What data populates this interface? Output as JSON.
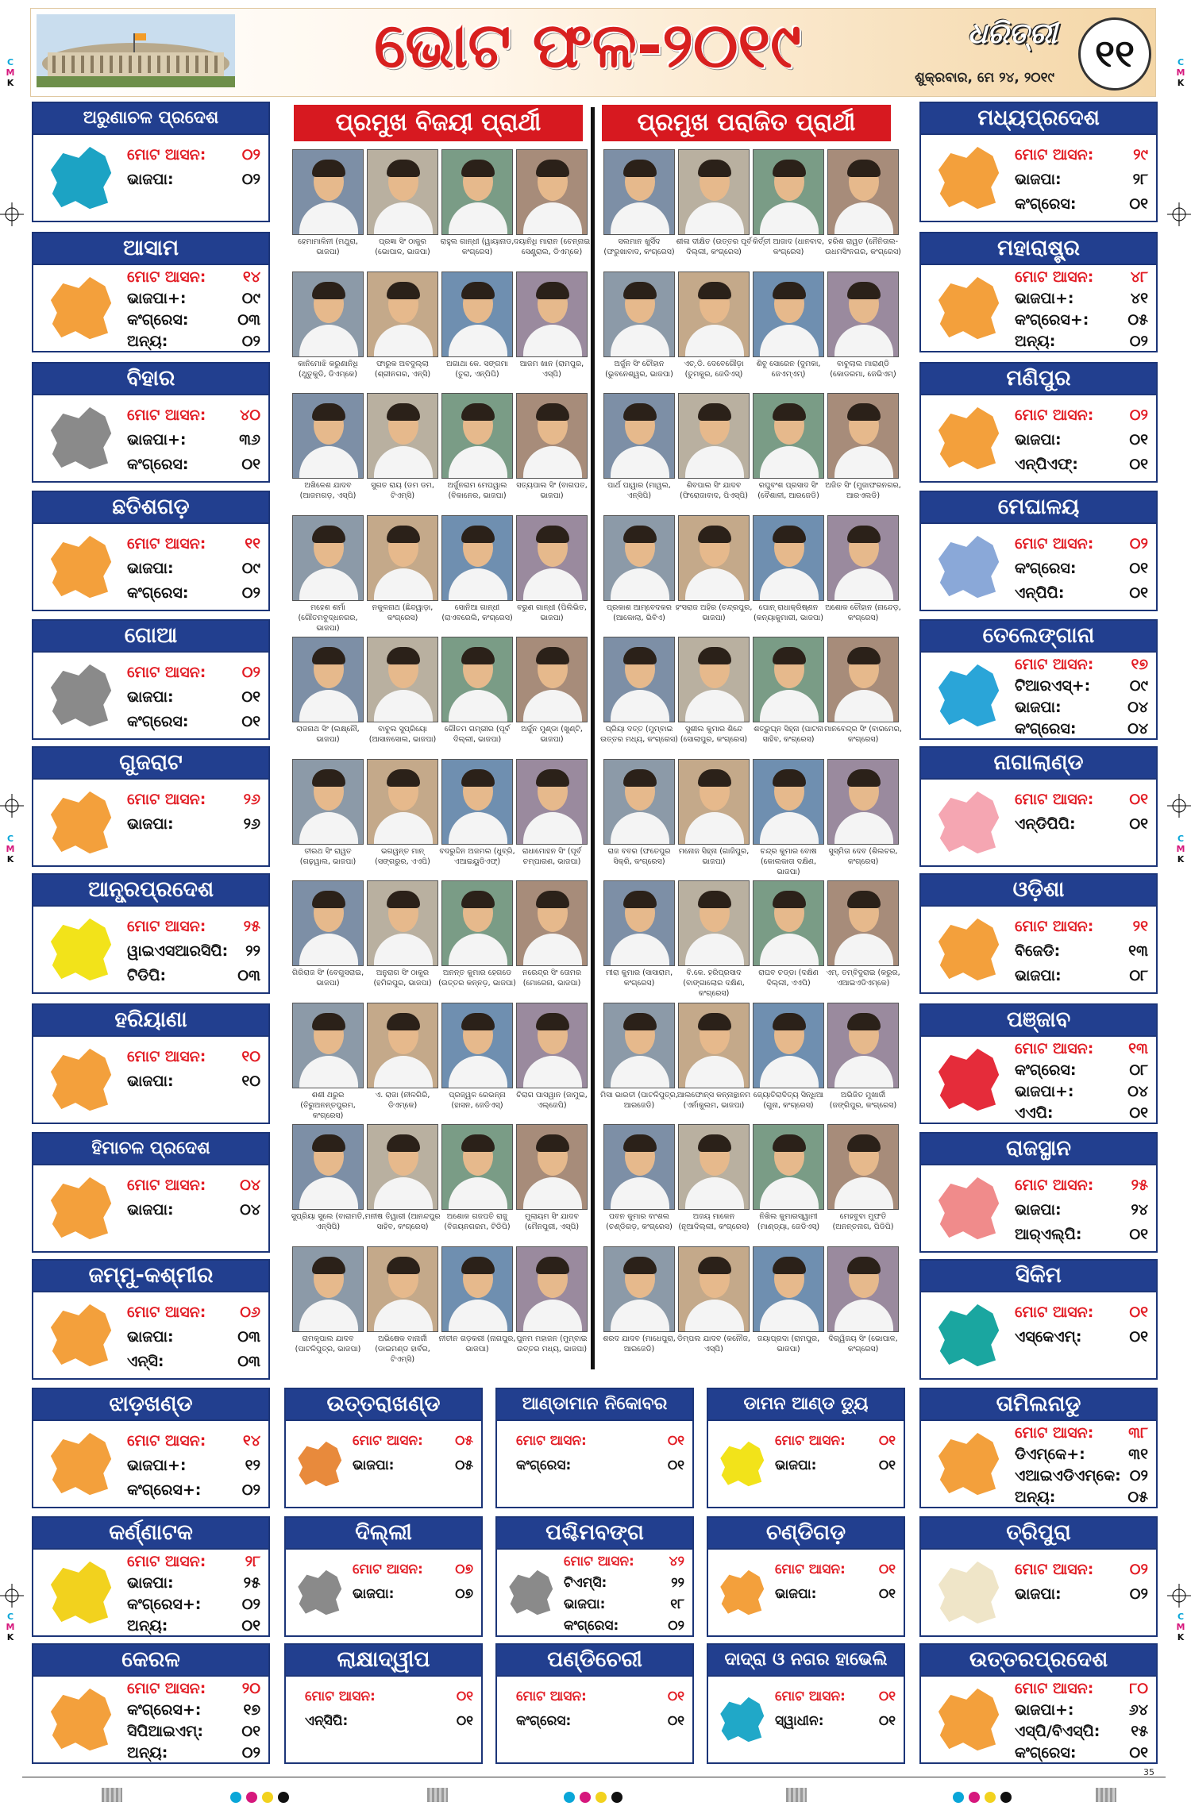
{
  "header": {
    "title": "ଭୋଟ ଫଳ-୨୦୧୯",
    "brand": "ଧରିତ୍ରୀ",
    "date": "ଶୁକ୍ରବାର, ମେ ୨୪, ୨୦୧୯",
    "page_number": "୧୧"
  },
  "sections": {
    "winners": "ପ୍ରମୁଖ ବିଜୟୀ ପ୍ରାର୍ଥୀ",
    "losers": "ପ୍ରମୁଖ ପରାଜିତ ପ୍ରାର୍ଥୀ"
  },
  "colors": {
    "header_blue": "#223f8f",
    "title_red": "#d8201f",
    "map_orange": "#f3a03c"
  },
  "register_marks": {
    "c": "C",
    "m": "M",
    "k": "K"
  },
  "page_footer_number": "35",
  "states": {
    "arunachal": {
      "name": "ଅରୁଣାଚଳ ପ୍ରଦେଶ",
      "rows": [
        {
          "k": "ମୋଟ ଆସନ:",
          "v": "୦୨"
        },
        {
          "k": "ଭାଜପା:",
          "v": "୦୨"
        }
      ]
    },
    "assam": {
      "name": "ଆସାମ",
      "rows": [
        {
          "k": "ମୋଟ ଆସନ:",
          "v": "୧୪"
        },
        {
          "k": "ଭାଜପା+:",
          "v": "୦୯"
        },
        {
          "k": "କଂଗ୍ରେସ:",
          "v": "୦୩"
        },
        {
          "k": "ଅନ୍ୟ:",
          "v": "୦୨"
        }
      ]
    },
    "bihar": {
      "name": "ବିହାର",
      "rows": [
        {
          "k": "ମୋଟ ଆସନ:",
          "v": "୪୦"
        },
        {
          "k": "ଭାଜପା+:",
          "v": "୩୬"
        },
        {
          "k": "କଂଗ୍ରେସ:",
          "v": "୦୧"
        }
      ]
    },
    "chhattisgarh": {
      "name": "ଛତିଶଗଡ଼",
      "rows": [
        {
          "k": "ମୋଟ ଆସନ:",
          "v": "୧୧"
        },
        {
          "k": "ଭାଜପା:",
          "v": "୦୯"
        },
        {
          "k": "କଂଗ୍ରେସ:",
          "v": "୦୨"
        }
      ]
    },
    "goa": {
      "name": "ଗୋଆ",
      "rows": [
        {
          "k": "ମୋଟ ଆସନ:",
          "v": "୦୨"
        },
        {
          "k": "ଭାଜପା:",
          "v": "୦୧"
        },
        {
          "k": "କଂଗ୍ରେସ:",
          "v": "୦୧"
        }
      ]
    },
    "gujarat": {
      "name": "ଗୁଜରାଟ",
      "rows": [
        {
          "k": "ମୋଟ ଆସନ:",
          "v": "୨୬"
        },
        {
          "k": "ଭାଜପା:",
          "v": "୨୬"
        }
      ]
    },
    "andhra": {
      "name": "ଆନ୍ଧ୍ରପ୍ରଦେଶ",
      "rows": [
        {
          "k": "ମୋଟ ଆସନ:",
          "v": "୨୫"
        },
        {
          "k": "ୱାଇଏସଆରସିପି:",
          "v": "୨୨"
        },
        {
          "k": "ଟିଡିପି:",
          "v": "୦୩"
        }
      ]
    },
    "haryana": {
      "name": "ହରିୟାଣା",
      "rows": [
        {
          "k": "ମୋଟ ଆସନ:",
          "v": "୧୦"
        },
        {
          "k": "ଭାଜପା:",
          "v": "୧୦"
        }
      ]
    },
    "himachal": {
      "name": "ହିମାଚଳ ପ୍ରଦେଶ",
      "rows": [
        {
          "k": "ମୋଟ ଆସନ:",
          "v": "୦୪"
        },
        {
          "k": "ଭାଜପା:",
          "v": "୦୪"
        }
      ]
    },
    "jk": {
      "name": "ଜମ୍ମୁ-କଶ୍ମୀର",
      "rows": [
        {
          "k": "ମୋଟ ଆସନ:",
          "v": "୦୬"
        },
        {
          "k": "ଭାଜପା:",
          "v": "୦୩"
        },
        {
          "k": "ଏନ୍‌ସି:",
          "v": "୦୩"
        }
      ]
    },
    "mp": {
      "name": "ମଧ୍ୟପ୍ରଦେଶ",
      "rows": [
        {
          "k": "ମୋଟ ଆସନ:",
          "v": "୨୯"
        },
        {
          "k": "ଭାଜପା:",
          "v": "୨୮"
        },
        {
          "k": "କଂଗ୍ରେସ:",
          "v": "୦୧"
        }
      ]
    },
    "maharashtra": {
      "name": "ମହାରାଷ୍ଟ୍ର",
      "rows": [
        {
          "k": "ମୋଟ ଆସନ:",
          "v": "୪୮"
        },
        {
          "k": "ଭାଜପା+:",
          "v": "୪୧"
        },
        {
          "k": "କଂଗ୍ରେସ+:",
          "v": "୦୫"
        },
        {
          "k": "ଅନ୍ୟ:",
          "v": "୦୨"
        }
      ]
    },
    "manipur": {
      "name": "ମଣିପୁର",
      "rows": [
        {
          "k": "ମୋଟ ଆସନ:",
          "v": "୦୨"
        },
        {
          "k": "ଭାଜପା:",
          "v": "୦୧"
        },
        {
          "k": "ଏନ୍‌ପିଏଫ୍:",
          "v": "୦୧"
        }
      ]
    },
    "meghalaya": {
      "name": "ମେଘାଳୟ",
      "rows": [
        {
          "k": "ମୋଟ ଆସନ:",
          "v": "୦୨"
        },
        {
          "k": "କଂଗ୍ରେସ:",
          "v": "୦୧"
        },
        {
          "k": "ଏନ୍‌ପିପି:",
          "v": "୦୧"
        }
      ]
    },
    "telangana": {
      "name": "ତେଲେଙ୍ଗାନା",
      "rows": [
        {
          "k": "ମୋଟ ଆସନ:",
          "v": "୧୭"
        },
        {
          "k": "ଟିଆରଏସ୍+:",
          "v": "୦୯"
        },
        {
          "k": "ଭାଜପା:",
          "v": "୦୪"
        },
        {
          "k": "କଂଗ୍ରେସ:",
          "v": "୦୪"
        }
      ]
    },
    "nagaland": {
      "name": "ନାଗାଲାଣ୍ଡ",
      "rows": [
        {
          "k": "ମୋଟ ଆସନ:",
          "v": "୦୧"
        },
        {
          "k": "ଏନ୍‌ଡିପିପି:",
          "v": "୦୧"
        }
      ]
    },
    "odisha": {
      "name": "ଓଡ଼ିଶା",
      "rows": [
        {
          "k": "ମୋଟ ଆସନ:",
          "v": "୨୧"
        },
        {
          "k": "ବିଜେଡି:",
          "v": "୧୩"
        },
        {
          "k": "ଭାଜପା:",
          "v": "୦୮"
        }
      ]
    },
    "punjab": {
      "name": "ପଞ୍ଜାବ",
      "rows": [
        {
          "k": "ମୋଟ ଆସନ:",
          "v": "୧୩"
        },
        {
          "k": "କଂଗ୍ରେସ:",
          "v": "୦୮"
        },
        {
          "k": "ଭାଜପା+:",
          "v": "୦୪"
        },
        {
          "k": "ଏଏପି:",
          "v": "୦୧"
        }
      ]
    },
    "rajasthan": {
      "name": "ରାଜସ୍ଥାନ",
      "rows": [
        {
          "k": "ମୋଟ ଆସନ:",
          "v": "୨୫"
        },
        {
          "k": "ଭାଜପା:",
          "v": "୨୪"
        },
        {
          "k": "ଆର୍‌ଏଲ୍‌ପି:",
          "v": "୦୧"
        }
      ]
    },
    "sikkim": {
      "name": "ସିକିମ",
      "rows": [
        {
          "k": "ମୋଟ ଆସନ:",
          "v": "୦୧"
        },
        {
          "k": "ଏସ୍‌କେଏମ୍:",
          "v": "୦୧"
        }
      ]
    },
    "jharkhand": {
      "name": "ଝାଡ଼ଖଣ୍ଡ",
      "rows": [
        {
          "k": "ମୋଟ ଆସନ:",
          "v": "୧୪"
        },
        {
          "k": "ଭାଜପା+:",
          "v": "୧୨"
        },
        {
          "k": "କଂଗ୍ରେସ+:",
          "v": "୦୨"
        }
      ]
    },
    "uttarakhand": {
      "name": "ଉତ୍ତରାଖଣ୍ଡ",
      "rows": [
        {
          "k": "ମୋଟ ଆସନ:",
          "v": "୦୫"
        },
        {
          "k": "ଭାଜପା:",
          "v": "୦୫"
        }
      ]
    },
    "andaman": {
      "name": "ଆଣ୍ଡାମାନ ନିକୋବର",
      "rows": [
        {
          "k": "ମୋଟ ଆସନ:",
          "v": "୦୧"
        },
        {
          "k": "କଂଗ୍ରେସ:",
          "v": "୦୧"
        }
      ]
    },
    "daman": {
      "name": "ଡାମନ ଆଣ୍ଡ ଡ୍ୟୁ",
      "rows": [
        {
          "k": "ମୋଟ ଆସନ:",
          "v": "୦୧"
        },
        {
          "k": "ଭାଜପା:",
          "v": "୦୧"
        }
      ]
    },
    "tamilnadu": {
      "name": "ତାମିଲନାଡୁ",
      "rows": [
        {
          "k": "ମୋଟ ଆସନ:",
          "v": "୩୮"
        },
        {
          "k": "ଡିଏମ୍‌କେ+:",
          "v": "୩୧"
        },
        {
          "k": "ଏଆଇଏଡିଏମ୍‌କେ:",
          "v": "୦୨"
        },
        {
          "k": "ଅନ୍ୟ:",
          "v": "୦୫"
        }
      ]
    },
    "karnataka": {
      "name": "କର୍ଣ୍ଣାଟକ",
      "rows": [
        {
          "k": "ମୋଟ ଆସନ:",
          "v": "୨୮"
        },
        {
          "k": "ଭାଜପା:",
          "v": "୨୫"
        },
        {
          "k": "କଂଗ୍ରେସ+:",
          "v": "୦୨"
        },
        {
          "k": "ଅନ୍ୟ:",
          "v": "୦୧"
        }
      ]
    },
    "delhi": {
      "name": "ଦିଲ୍ଲୀ",
      "rows": [
        {
          "k": "ମୋଟ ଆସନ:",
          "v": "୦୭"
        },
        {
          "k": "ଭାଜପା:",
          "v": "୦୭"
        }
      ]
    },
    "wb": {
      "name": "ପଶ୍ଚିମବଙ୍ଗ",
      "rows": [
        {
          "k": "ମୋଟ ଆସନ:",
          "v": "୪୨"
        },
        {
          "k": "ଟିଏମ୍‌ସି:",
          "v": "୨୨"
        },
        {
          "k": "ଭାଜପା:",
          "v": "୧୮"
        },
        {
          "k": "କଂଗ୍ରେସ:",
          "v": "୦୨"
        }
      ]
    },
    "chandigarh": {
      "name": "ଚଣ୍ଡିଗଡ଼",
      "rows": [
        {
          "k": "ମୋଟ ଆସନ:",
          "v": "୦୧"
        },
        {
          "k": "ଭାଜପା:",
          "v": "୦୧"
        }
      ]
    },
    "tripura": {
      "name": "ତ୍ରିପୁରା",
      "rows": [
        {
          "k": "ମୋଟ ଆସନ:",
          "v": "୦୨"
        },
        {
          "k": "ଭାଜପା:",
          "v": "୦୨"
        }
      ]
    },
    "kerala": {
      "name": "କେରଳ",
      "rows": [
        {
          "k": "ମୋଟ ଆସନ:",
          "v": "୨୦"
        },
        {
          "k": "କଂଗ୍ରେସ+:",
          "v": "୧୭"
        },
        {
          "k": "ସିପିଆଇଏମ୍:",
          "v": "୦୧"
        },
        {
          "k": "ଅନ୍ୟ:",
          "v": "୦୨"
        }
      ]
    },
    "lakshadweep": {
      "name": "ଲାକ୍ଷାଦ୍ୱୀପ",
      "rows": [
        {
          "k": "ମୋଟ ଆସନ:",
          "v": "୦୧"
        },
        {
          "k": "ଏନ୍‌ସିପି:",
          "v": "୦୧"
        }
      ]
    },
    "puducherry": {
      "name": "ପଣ୍ଡିଚେରୀ",
      "rows": [
        {
          "k": "ମୋଟ ଆସନ:",
          "v": "୦୧"
        },
        {
          "k": "କଂଗ୍ରେସ:",
          "v": "୦୧"
        }
      ]
    },
    "dnh": {
      "name": "ଦାଦ୍ରା ଓ ନଗର ହାଭେଲି",
      "rows": [
        {
          "k": "ମୋଟ ଆସନ:",
          "v": "୦୧"
        },
        {
          "k": "ସ୍ୱାଧୀନ:",
          "v": "୦୧"
        }
      ]
    },
    "up": {
      "name": "ଉତ୍ତରପ୍ରଦେଶ",
      "rows": [
        {
          "k": "ମୋଟ ଆସନ:",
          "v": "୮୦"
        },
        {
          "k": "ଭାଜପା+:",
          "v": "୬୪"
        },
        {
          "k": "ଏସ୍‌ପି/ବିଏସ୍‌ପି:",
          "v": "୧୫"
        },
        {
          "k": "କଂଗ୍ରେସ:",
          "v": "୦୧"
        }
      ]
    }
  },
  "winners": [
    [
      "ହେମାମାଳିନୀ (ମଥୁରା, ଭାଜପା)",
      "ପ୍ରଜ୍ଞା ସିଂ ଠାକୁର (ଭୋପାଳ, ଭାଜପା)",
      "ରାହୁଲ ଗାନ୍ଧୀ (ୱାୟାନାଡ, କଂଗ୍ରେସ)",
      "ଦୟାନିଧି ମାରାନ (ଚେନ୍ନାଇ ସେଣ୍ଟ୍ରାଲ, ଡିଏମ୍‌କେ)"
    ],
    [
      "କାନିମୋଝି କରୁଣାନିଧି (ଥୁତୁକୁଡି, ଡିଏମ୍‌କେ)",
      "ଫାରୁକ ଅବଦୁଲ୍ଲା (ଶ୍ରୀନଗର, ଏନ୍‌ସି)",
      "ଅଗାଥା କେ. ସଙ୍ଗମା (ତୁରା, ଏନ୍‌ପିପି)",
      "ଆଜମ ଖାନ (ରାମପୁର, ଏସ୍‌ପି)"
    ],
    [
      "ଅଖିଳେଶ ଯାଦବ (ଆଜମଗଡ଼, ଏସ୍‌ପି)",
      "ସୁଗତ ରାୟ (ଡମ ଡମ, ଟିଏମ୍‌ସି)",
      "ଅର୍ଜୁନରାମ ମେଘୱାଲ (ବିକାନେର, ଭାଜପା)",
      "ସତ୍ୟପାଲ ସିଂ (ବାଗପତ, ଭାଜପା)"
    ],
    [
      "ମହେଶ ଶର୍ମା (ଗୌତମବୁଦ୍ଧନଗର, ଭାଜପା)",
      "ନକୁଳନାଥ (ଛିନ୍ଦୱାଡ଼ା, କଂଗ୍ରେସ)",
      "ସୋନିଆ ଗାନ୍ଧୀ (ରାଏବରେଲି, କଂଗ୍ରେସ)",
      "ବରୁଣ ଗାନ୍ଧୀ (ପିଲିଭିତ, ଭାଜପା)"
    ],
    [
      "ରାଜନାଥ ସିଂ (ଲକ୍ଷ୍ନୌ, ଭାଜପା)",
      "ବାବୁଲ ସୁପ୍ରିୟୋ (ଆସାନସୋଲ, ଭାଜପା)",
      "ଗୌତମ ଗମ୍ଭୀର (ପୂର୍ବ ଦିଲ୍ଲୀ, ଭାଜପା)",
      "ଅର୍ଜୁନ ମୁଣ୍ଡା (ଖୁଣ୍ଟି, ଭାଜପା)"
    ],
    [
      "ତୀରଥ ସିଂ ରାୱତ (ଗଢ଼ୱାଲ, ଭାଜପା)",
      "ଭଗୱନ୍ତ ମାନ୍ (ସଙ୍ଗରୁର, ଏଏପି)",
      "ବଦରୁଦ୍ଦିନ ଅଜମଲ (ଧୁବ୍ରି, ଏଆଇୟୁଡିଏଫ୍)",
      "ରାଧାମୋହନ ସିଂ (ପୂର୍ବ ଚମ୍ପାରଣ, ଭାଜପା)"
    ],
    [
      "ଗିରିରାଜ ସିଂ (ବେଗୁସରାଇ, ଭାଜପା)",
      "ଅନୁରାଗ ସିଂ ଠାକୁର (ହମିରପୁର, ଭାଜପା)",
      "ଅନନ୍ତ କୁମାର ହେଗଡେ (ଉତ୍ତର କନ୍ନଡ଼, ଭାଜପା)",
      "ନରେନ୍ଦ୍ର ସିଂ ତୋମର (ମୋରେନା, ଭାଜପା)"
    ],
    [
      "ଶଶୀ ଥରୁର (ତିରୁଅନନ୍ତପୁରମ, କଂଗ୍ରେସ)",
      "ଏ. ରାଜା (ନୀଳଗିରି, ଡିଏମ୍‌କେ)",
      "ପ୍ରଜ୍ୱଳ ରେଭନ୍ନା (ହାସନ, ଜେଡିଏସ୍)",
      "ଚିରାଗ ପାସୱାନ (ଜାମୁଇ, ଏଲ୍‌ଜେପି)"
    ],
    [
      "ସୁପ୍ରିୟା ସୁଲେ (ବାରାମତି, ଏନ୍‌ସିପି)",
      "ମନୀଷ ତିୱାରୀ (ଆନନ୍ଦପୁର ସାହିବ, କଂଗ୍ରେସ)",
      "ଅଶୋକ ଗଜପତି ରାଜୁ (ବିଜୟନଗରମ, ଟିଡିପି)",
      "ମୁଲାୟମ ସିଂ ଯାଦବ (ମୈନପୁରୀ, ଏସ୍‌ପି)"
    ],
    [
      "ରାମକୃପାଲ ଯାଦବ (ପାଟଳିପୁତ୍ର, ଭାଜପା)",
      "ଅଭିଷେକ ବାନାର୍ଜୀ (ଡାଇମଣ୍ଡ ହାର୍ବର, ଟିଏମ୍‌ସି)",
      "ନୀତୀନ ଗଡ଼କରୀ (ନାଗପୁର, ଭାଜପା)",
      "ପୁନମ ମହାଜନ (ମୁମ୍ବାଇ ଉତ୍ତର ମଧ୍ୟ, ଭାଜପା)"
    ]
  ],
  "losers": [
    [
      "ସଲମାନ ଖୁର୍ସିଦ (ଫରୁଖାବାଦ, କଂଗ୍ରେସ)",
      "ଶୀଳା ଦୀକ୍ଷିତ (ଉତ୍ତର ପୂର୍ବ ଦିଲ୍ଲୀ, କଂଗ୍ରେସ)",
      "କିର୍ତ୍ତୀ ଆଜାଦ (ଧାନବାଦ, କଂଗ୍ରେସ)",
      "ହରିଶ ରାୱତ (ନୈନିତାଲ-ଉଧମସିଂନଗର, କଂଗ୍ରେସ)"
    ],
    [
      "ଅର୍ଜୁନ ସିଂ ଚୌହାନ (ଭୁବନେଶ୍ୱର, ଭାଜପା)",
      "ଏଚ୍.ଡି. ଦେବେଗୌଡ଼ା (ତୁମକୁର, ଜେଡିଏସ୍)",
      "ଶିବୁ ସୋରେନ (ଦୁମକା, ଜେଏମ୍‌ଏମ୍)",
      "ବାବୁଲାଲ ମାରାଣ୍ଡି (କୋଡରମା, ଜେଭିଏମ୍)"
    ],
    [
      "ପାର୍ଥ ପାୱାର (ମାୱଲ, ଏନ୍‌ସିପି)",
      "ଶିବପାଲ ସିଂ ଯାଦବ (ଫିରୋଜାବାଦ, ପିଏସ୍‌ପି)",
      "ରଘୁବଂଶ ପ୍ରସାଦ ସିଂ (ବୈଶାଳୀ, ଆରଜେଡି)",
      "ଅଜିତ ସିଂ (ମୁଜାଫରନଗର, ଆରଏଲଡି)"
    ],
    [
      "ପ୍ରକାଶ ଆମ୍ବେଦକର (ଆକୋଲା, ଭିବିଏ)",
      "ହଂସରାଜ ଅହିର (ଚନ୍ଦ୍ରପୁର, ଭାଜପା)",
      "ପୋନ୍ ରାଧାକ୍ରିଷ୍ଣନ (କନ୍ୟାକୁମାରୀ, ଭାଜପା)",
      "ଅଶୋକ ଚୌହାନ (ନାନ୍ଦେଡ଼, କଂଗ୍ରେସ)"
    ],
    [
      "ପ୍ରିୟା ଦତ୍ତ (ମୁମ୍ବାଇ ଉତ୍ତର ମଧ୍ୟ, କଂଗ୍ରେସ)",
      "ସୁଶୀଲ କୁମାର ଶିନ୍ଦେ (ସୋଲାପୁର, କଂଗ୍ରେସ)",
      "ଶତ୍ରୁଘ୍ନ ସିହ୍ନା (ପାଟନା ସାହିବ, କଂଗ୍ରେସ)",
      "ମାନବେନ୍ଦ୍ର ସିଂ (ବାରମେର, କଂଗ୍ରେସ)"
    ],
    [
      "ରାଜ ବବର (ଫତେପୁର ସିକ୍ରି, କଂଗ୍ରେସ)",
      "ମନୋଜ ସିହ୍ନା (ଗାଜିପୁର, ଭାଜପା)",
      "ଚନ୍ଦ୍ର କୁମାର ବୋଷ (କୋଲକାତା ଦକ୍ଷିଣ, ଭାଜପା)",
      "ସୁସ୍ମିତା ଦେବ (ଶିଲଚର, କଂଗ୍ରେସ)"
    ],
    [
      "ମୀରା କୁମାର (ସାସାରାମ, କଂଗ୍ରେସ)",
      "ବି.କେ. ହରିପ୍ରସାଦ (ବାଙ୍ଗାଲୋର ଦକ୍ଷିଣ, କଂଗ୍ରେସ)",
      "ରାଘବ ଚଡ୍ଡା (ଦକ୍ଷିଣ ଦିଲ୍ଲୀ, ଏଏପି)",
      "ଏମ୍. ତମ୍ବିଦୁରାଇ (କରୁର, ଏଆଇଏଡିଏମ୍‌କେ)"
    ],
    [
      "ମିସା ଭାରତୀ (ପାଟଳିପୁତ୍ର, ଆରଜେଡି)",
      "ଆଲଫୋନ୍ସ କନ୍ନାନ୍ଥାନମ (ଏର୍ନାକୁଲମ, ଭାଜପା)",
      "ଜ୍ୟୋତିରାଦିତ୍ୟ ସିନ୍ଧିଆ (ଗୁନା, କଂଗ୍ରେସ)",
      "ଅଭିଜିତ ମୁଖାର୍ଜୀ (ଜଙ୍ଗିପୁର, କଂଗ୍ରେସ)"
    ],
    [
      "ପବନ କୁମାର ବାଂଶଲ (ଚଣ୍ଡିଗଡ଼, କଂଗ୍ରେସ)",
      "ଅଜୟ ମାକେନ (ନୂଆଦିଲ୍ଲୀ, କଂଗ୍ରେସ)",
      "ନିଖିଲ କୁମାରସ୍ୱାମୀ (ମାଣ୍ଡ୍ୟା, ଜେଡିଏସ୍)",
      "ମେହବୁବା ମୁଫତି (ଅନନ୍ତନାଗ, ପିଡିପି)"
    ],
    [
      "ଶରଦ ଯାଦବ (ମାଧେପୁରା, ଆରଜେଡି)",
      "ଡିମ୍ପଲ ଯାଦବ (କନୌଜ, ଏସ୍‌ପି)",
      "ଜୟାପ୍ରଦା (ରାମପୁର, ଭାଜପା)",
      "ଦିଗ୍ୱିଜୟ ସିଂ (ଭୋପାଳ, କଂଗ୍ରେସ)"
    ]
  ]
}
